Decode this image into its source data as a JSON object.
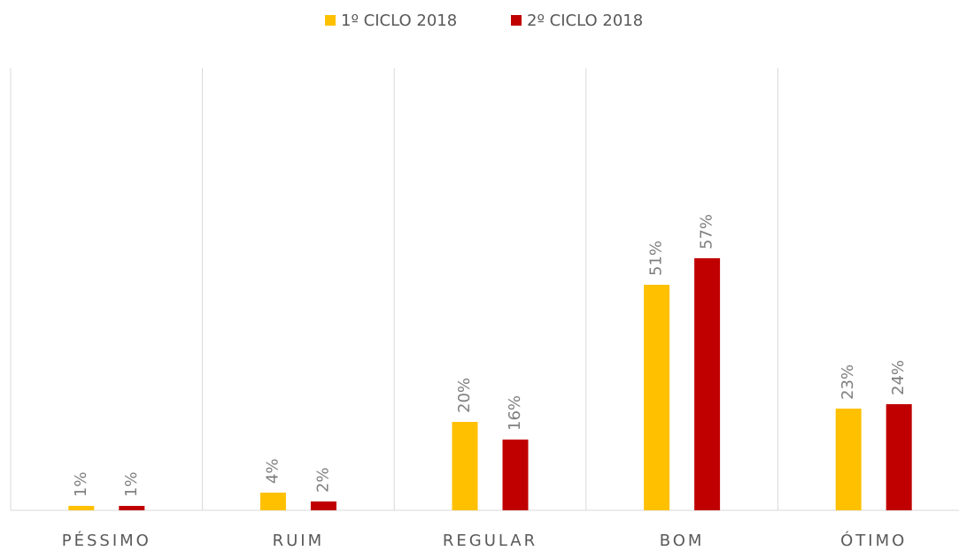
{
  "chart_data": {
    "type": "bar",
    "categories": [
      "PÉSSIMO",
      "RUIM",
      "REGULAR",
      "BOM",
      "ÓTIMO"
    ],
    "series": [
      {
        "name": "1º CICLO 2018",
        "color": "#ffc000",
        "values": [
          1,
          4,
          20,
          51,
          23
        ],
        "value_labels": [
          "1%",
          "4%",
          "20%",
          "51%",
          "23%"
        ]
      },
      {
        "name": "2º CICLO 2018",
        "color": "#c00000",
        "values": [
          1,
          2,
          16,
          57,
          24
        ],
        "value_labels": [
          "1%",
          "2%",
          "16%",
          "57%",
          "24%"
        ]
      }
    ],
    "ylim": [
      0,
      100
    ],
    "legend": "top"
  }
}
